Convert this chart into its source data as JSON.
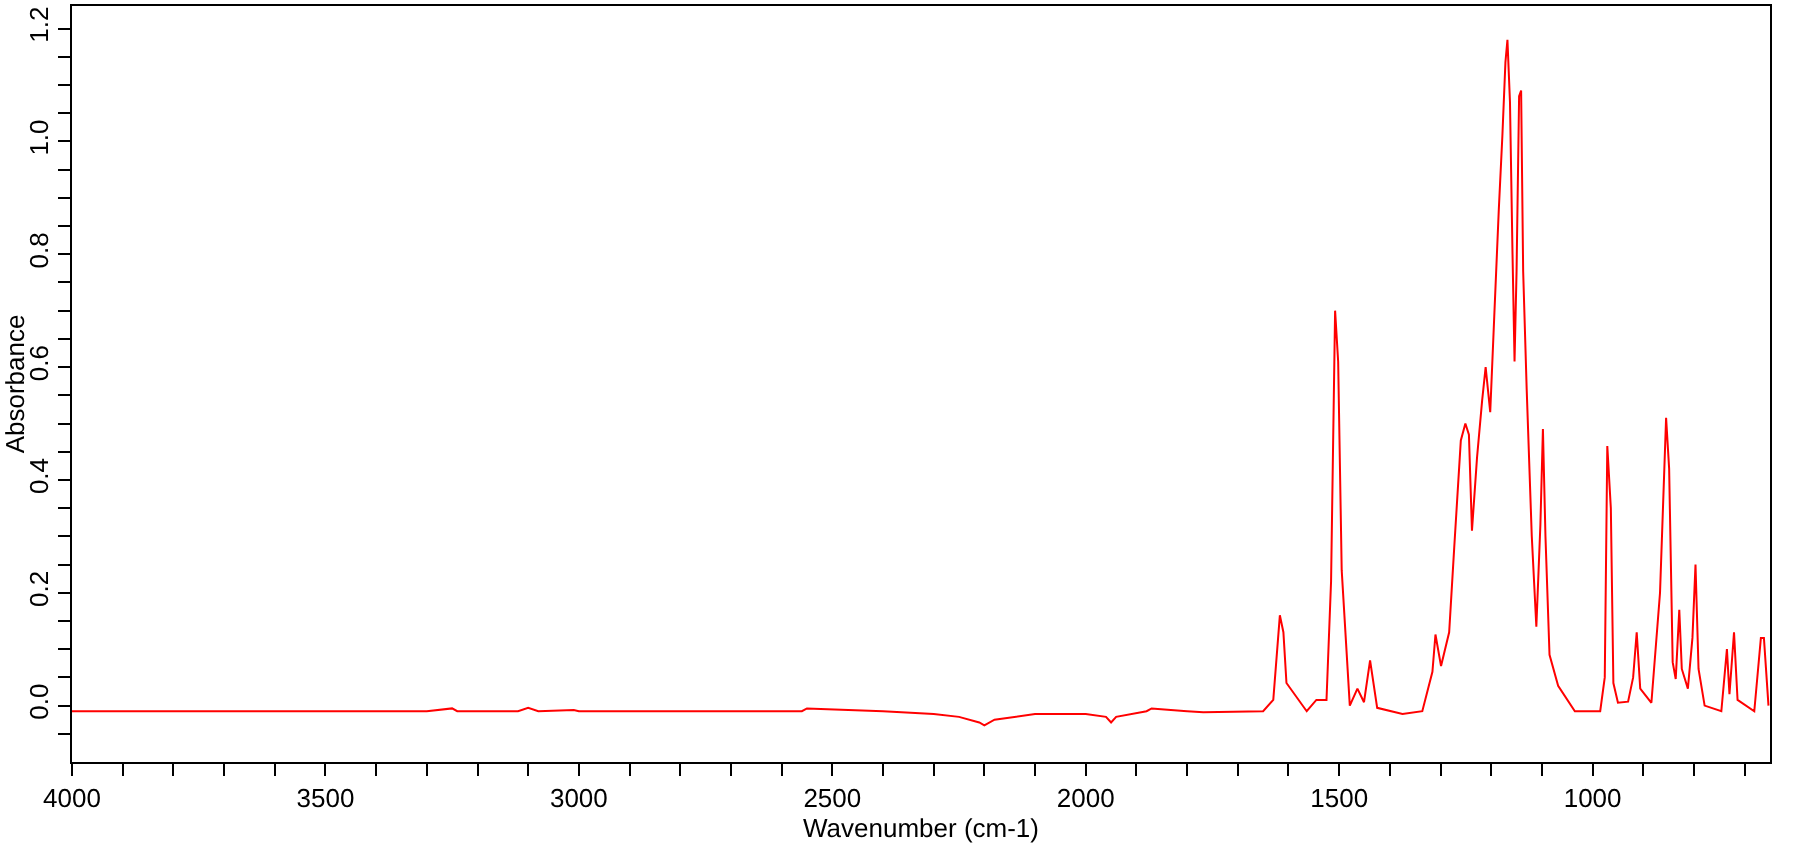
{
  "chart_data": {
    "type": "line",
    "xlabel": "Wavenumber (cm-1)",
    "ylabel": "Absorbance",
    "x": [
      4000,
      3300,
      3250,
      3240,
      3120,
      3100,
      3080,
      3010,
      3000,
      2560,
      2550,
      2400,
      2300,
      2250,
      2210,
      2200,
      2180,
      2100,
      2000,
      1960,
      1950,
      1940,
      1880,
      1870,
      1800,
      1768,
      1650,
      1630,
      1617,
      1610,
      1604,
      1564,
      1545,
      1525,
      1516,
      1508,
      1502,
      1495,
      1479,
      1464,
      1451,
      1439,
      1425,
      1375,
      1336,
      1316,
      1310,
      1299,
      1283,
      1273,
      1260,
      1251,
      1244,
      1238,
      1228,
      1218,
      1211,
      1202,
      1194,
      1185,
      1178,
      1172,
      1168,
      1163,
      1158,
      1154,
      1150,
      1145,
      1141,
      1137,
      1130,
      1120,
      1111,
      1103,
      1098,
      1093,
      1085,
      1068,
      1035,
      985,
      976,
      971,
      964,
      959,
      950,
      930,
      920,
      913,
      906,
      884,
      867,
      855,
      849,
      842,
      836,
      829,
      824,
      812,
      803,
      797,
      791,
      779,
      746,
      735,
      730,
      721,
      714,
      681,
      668,
      662,
      653
    ],
    "series": [
      {
        "color": "#ff0000",
        "values": [
          -0.01,
          -0.01,
          -0.005,
          -0.01,
          -0.01,
          -0.004,
          -0.01,
          -0.008,
          -0.01,
          -0.01,
          -0.005,
          -0.01,
          -0.015,
          -0.02,
          -0.03,
          -0.035,
          -0.025,
          -0.015,
          -0.015,
          -0.02,
          -0.03,
          -0.02,
          -0.01,
          -0.005,
          -0.01,
          -0.012,
          -0.01,
          0.01,
          0.16,
          0.13,
          0.04,
          -0.01,
          0.01,
          0.01,
          0.22,
          0.7,
          0.61,
          0.24,
          0.0,
          0.03,
          0.006,
          0.08,
          -0.004,
          -0.015,
          -0.01,
          0.06,
          0.126,
          0.07,
          0.13,
          0.28,
          0.47,
          0.5,
          0.48,
          0.31,
          0.44,
          0.54,
          0.6,
          0.52,
          0.69,
          0.88,
          1.01,
          1.14,
          1.18,
          1.07,
          0.8,
          0.61,
          0.77,
          1.08,
          1.09,
          0.77,
          0.56,
          0.3,
          0.14,
          0.32,
          0.49,
          0.3,
          0.09,
          0.035,
          -0.01,
          -0.01,
          0.05,
          0.46,
          0.35,
          0.04,
          0.005,
          0.007,
          0.05,
          0.13,
          0.03,
          0.005,
          0.2,
          0.51,
          0.42,
          0.077,
          0.047,
          0.17,
          0.065,
          0.03,
          0.12,
          0.25,
          0.065,
          0.0,
          -0.01,
          0.1,
          0.02,
          0.13,
          0.01,
          -0.01,
          0.12,
          0.12,
          0.0
        ]
      }
    ],
    "xlim": [
      4000,
      650
    ],
    "xticks": [
      4000,
      {
        "value": 3900,
        "label": null
      },
      {
        "value": 3800,
        "label": null
      },
      {
        "value": 3700,
        "label": null
      },
      {
        "value": 3600,
        "label": null
      },
      3500,
      {
        "value": 3400,
        "label": null
      },
      {
        "value": 3300,
        "label": null
      },
      {
        "value": 3200,
        "label": null
      },
      {
        "value": 3100,
        "label": null
      },
      3000,
      {
        "value": 2900,
        "label": null
      },
      {
        "value": 2800,
        "label": null
      },
      {
        "value": 2700,
        "label": null
      },
      {
        "value": 2600,
        "label": null
      },
      2500,
      {
        "value": 2400,
        "label": null
      },
      {
        "value": 2300,
        "label": null
      },
      {
        "value": 2200,
        "label": null
      },
      {
        "value": 2100,
        "label": null
      },
      2000,
      {
        "value": 1900,
        "label": null
      },
      {
        "value": 1800,
        "label": null
      },
      {
        "value": 1700,
        "label": null
      },
      {
        "value": 1600,
        "label": null
      },
      1500,
      {
        "value": 1400,
        "label": null
      },
      {
        "value": 1300,
        "label": null
      },
      {
        "value": 1200,
        "label": null
      },
      {
        "value": 1100,
        "label": null
      },
      1000,
      {
        "value": 900,
        "label": null
      },
      {
        "value": 800,
        "label": null
      },
      {
        "value": 700,
        "label": null
      }
    ],
    "ylim": [
      -0.1,
      1.24
    ],
    "yticks": [
      {
        "value": -0.05,
        "label": null
      },
      {
        "value": 0,
        "label": "0.0"
      },
      {
        "value": 0.05,
        "label": null
      },
      {
        "value": 0.1,
        "label": null
      },
      {
        "value": 0.15,
        "label": null
      },
      {
        "value": 0.2,
        "label": "0.2"
      },
      {
        "value": 0.25,
        "label": null
      },
      {
        "value": 0.3,
        "label": null
      },
      {
        "value": 0.35,
        "label": null
      },
      {
        "value": 0.4,
        "label": "0.4"
      },
      {
        "value": 0.45,
        "label": null
      },
      {
        "value": 0.5,
        "label": null
      },
      {
        "value": 0.55,
        "label": null
      },
      {
        "value": 0.6,
        "label": "0.6"
      },
      {
        "value": 0.65,
        "label": null
      },
      {
        "value": 0.7,
        "label": null
      },
      {
        "value": 0.75,
        "label": null
      },
      {
        "value": 0.8,
        "label": "0.8"
      },
      {
        "value": 0.85,
        "label": null
      },
      {
        "value": 0.9,
        "label": null
      },
      {
        "value": 0.95,
        "label": null
      },
      {
        "value": 1.0,
        "label": "1.0"
      },
      {
        "value": 1.05,
        "label": null
      },
      {
        "value": 1.1,
        "label": null
      },
      {
        "value": 1.15,
        "label": null
      },
      {
        "value": 1.2,
        "label": "1.2"
      }
    ],
    "marker": "none",
    "line_style": "solid"
  }
}
